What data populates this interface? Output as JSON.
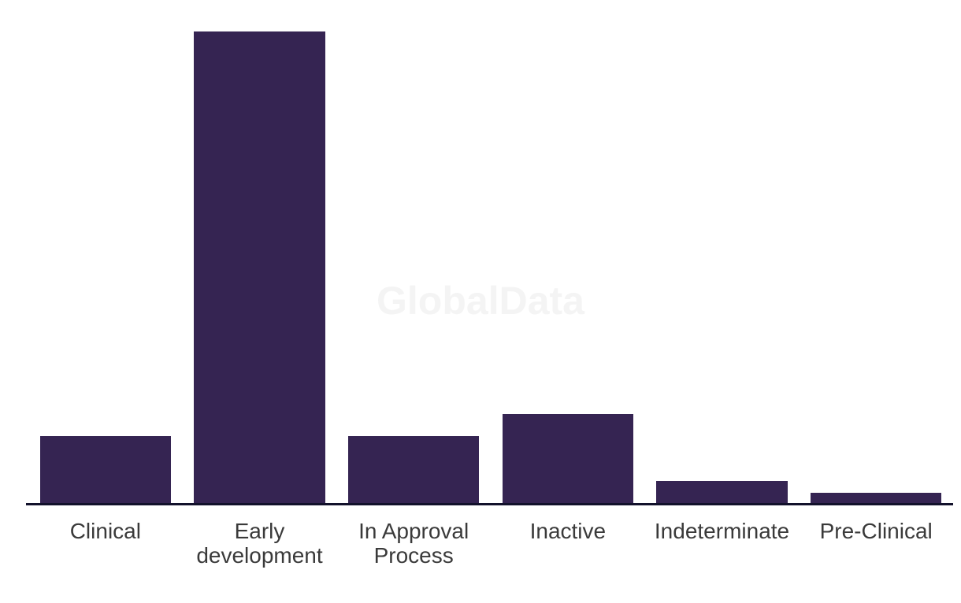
{
  "watermark": {
    "text": "GlobalData",
    "color": "#f4f4f4"
  },
  "colors": {
    "background": "#ffffff",
    "bar": "#352452",
    "axis_line": "#12112b",
    "label_text": "#3a3a3a"
  },
  "chart_data": {
    "type": "bar",
    "categories": [
      "Clinical",
      "Early development",
      "In Approval Process",
      "Inactive",
      "Indeterminate",
      "Pre-Clinical"
    ],
    "values": [
      6,
      42,
      6,
      8,
      2,
      1
    ],
    "title": "",
    "xlabel": "",
    "ylabel": "",
    "ylim": [
      0,
      42
    ],
    "grid": false,
    "legend": false,
    "y_axis_visible": false,
    "bar_color": "#352452",
    "orientation": "vertical"
  }
}
